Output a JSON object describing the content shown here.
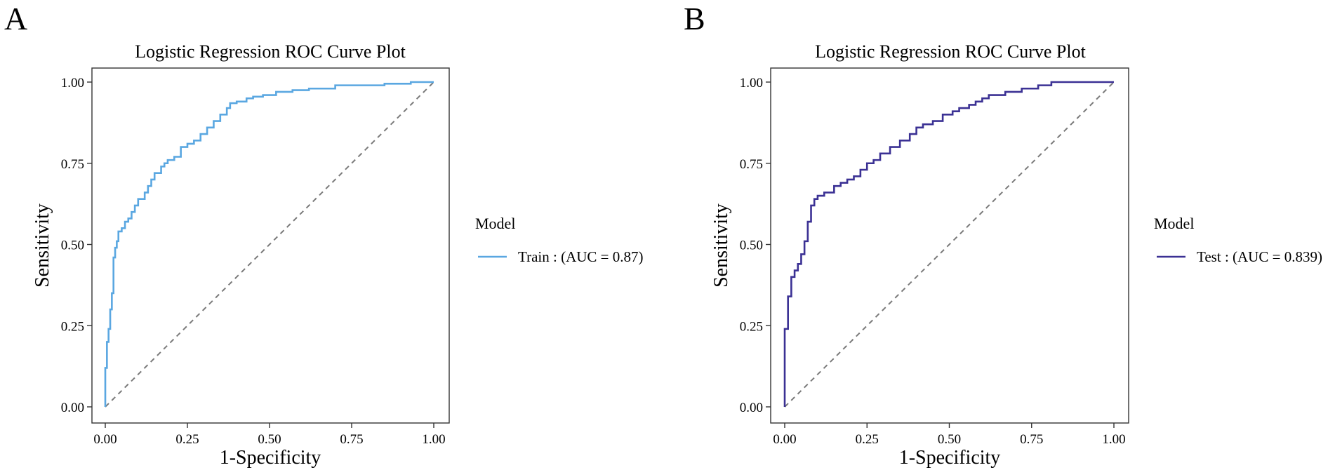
{
  "chart_data": [
    {
      "type": "line",
      "panel_label": "A",
      "title": "Logistic Regression ROC Curve Plot",
      "xlabel": "1-Specificity",
      "ylabel": "Sensitivity",
      "xlim": [
        0,
        1
      ],
      "ylim": [
        0,
        1
      ],
      "x_ticks": [
        "0.00",
        "0.25",
        "0.50",
        "0.75",
        "1.00"
      ],
      "y_ticks": [
        "0.00",
        "0.25",
        "0.50",
        "0.75",
        "1.00"
      ],
      "grid": false,
      "reference_line": "diagonal",
      "legend_title": "Model",
      "legend_position": "right",
      "series": [
        {
          "name": "Train : (AUC = 0.87)",
          "color": "#5aa7e1",
          "x": [
            0,
            0,
            0.005,
            0.005,
            0.01,
            0.01,
            0.015,
            0.015,
            0.02,
            0.02,
            0.025,
            0.025,
            0.03,
            0.03,
            0.035,
            0.035,
            0.04,
            0.04,
            0.05,
            0.05,
            0.06,
            0.06,
            0.07,
            0.07,
            0.08,
            0.08,
            0.09,
            0.09,
            0.1,
            0.1,
            0.12,
            0.12,
            0.13,
            0.13,
            0.14,
            0.14,
            0.15,
            0.15,
            0.17,
            0.17,
            0.18,
            0.18,
            0.19,
            0.19,
            0.21,
            0.21,
            0.23,
            0.23,
            0.25,
            0.25,
            0.27,
            0.27,
            0.29,
            0.29,
            0.31,
            0.31,
            0.33,
            0.33,
            0.35,
            0.35,
            0.37,
            0.37,
            0.38,
            0.38,
            0.4,
            0.4,
            0.43,
            0.43,
            0.45,
            0.45,
            0.48,
            0.48,
            0.52,
            0.52,
            0.57,
            0.57,
            0.62,
            0.62,
            0.7,
            0.7,
            0.85,
            0.85,
            0.93,
            0.93,
            1
          ],
          "y": [
            0,
            0.12,
            0.12,
            0.2,
            0.2,
            0.24,
            0.24,
            0.3,
            0.3,
            0.35,
            0.35,
            0.46,
            0.46,
            0.49,
            0.49,
            0.51,
            0.51,
            0.54,
            0.54,
            0.55,
            0.55,
            0.57,
            0.57,
            0.58,
            0.58,
            0.6,
            0.6,
            0.62,
            0.62,
            0.64,
            0.64,
            0.66,
            0.66,
            0.68,
            0.68,
            0.7,
            0.7,
            0.72,
            0.72,
            0.74,
            0.74,
            0.75,
            0.75,
            0.76,
            0.76,
            0.77,
            0.77,
            0.8,
            0.8,
            0.81,
            0.81,
            0.82,
            0.82,
            0.84,
            0.84,
            0.86,
            0.86,
            0.88,
            0.88,
            0.9,
            0.9,
            0.92,
            0.92,
            0.935,
            0.935,
            0.94,
            0.94,
            0.95,
            0.95,
            0.955,
            0.955,
            0.96,
            0.96,
            0.97,
            0.97,
            0.975,
            0.975,
            0.98,
            0.98,
            0.99,
            0.99,
            0.995,
            0.995,
            1,
            1
          ]
        }
      ]
    },
    {
      "type": "line",
      "panel_label": "B",
      "title": "Logistic Regression ROC Curve Plot",
      "xlabel": "1-Specificity",
      "ylabel": "Sensitivity",
      "xlim": [
        0,
        1
      ],
      "ylim": [
        0,
        1
      ],
      "x_ticks": [
        "0.00",
        "0.25",
        "0.50",
        "0.75",
        "1.00"
      ],
      "y_ticks": [
        "0.00",
        "0.25",
        "0.50",
        "0.75",
        "1.00"
      ],
      "grid": false,
      "reference_line": "diagonal",
      "legend_title": "Model",
      "legend_position": "right",
      "series": [
        {
          "name": "Test : (AUC = 0.839)",
          "color": "#3b3194",
          "x": [
            0,
            0,
            0.01,
            0.01,
            0.02,
            0.02,
            0.03,
            0.03,
            0.04,
            0.04,
            0.05,
            0.05,
            0.06,
            0.06,
            0.07,
            0.07,
            0.08,
            0.08,
            0.09,
            0.09,
            0.1,
            0.1,
            0.12,
            0.12,
            0.15,
            0.15,
            0.17,
            0.17,
            0.19,
            0.19,
            0.21,
            0.21,
            0.23,
            0.23,
            0.25,
            0.25,
            0.27,
            0.27,
            0.29,
            0.29,
            0.32,
            0.32,
            0.35,
            0.35,
            0.38,
            0.38,
            0.4,
            0.4,
            0.42,
            0.42,
            0.45,
            0.45,
            0.48,
            0.48,
            0.51,
            0.51,
            0.53,
            0.53,
            0.56,
            0.56,
            0.58,
            0.58,
            0.6,
            0.6,
            0.62,
            0.62,
            0.67,
            0.67,
            0.72,
            0.72,
            0.77,
            0.77,
            0.81,
            0.81,
            1
          ],
          "y": [
            0,
            0.24,
            0.24,
            0.34,
            0.34,
            0.4,
            0.4,
            0.42,
            0.42,
            0.44,
            0.44,
            0.47,
            0.47,
            0.51,
            0.51,
            0.57,
            0.57,
            0.62,
            0.62,
            0.64,
            0.64,
            0.65,
            0.65,
            0.66,
            0.66,
            0.68,
            0.68,
            0.69,
            0.69,
            0.7,
            0.7,
            0.71,
            0.71,
            0.73,
            0.73,
            0.75,
            0.75,
            0.76,
            0.76,
            0.78,
            0.78,
            0.8,
            0.8,
            0.82,
            0.82,
            0.84,
            0.84,
            0.86,
            0.86,
            0.87,
            0.87,
            0.88,
            0.88,
            0.9,
            0.9,
            0.91,
            0.91,
            0.92,
            0.92,
            0.93,
            0.93,
            0.94,
            0.94,
            0.95,
            0.95,
            0.96,
            0.96,
            0.97,
            0.97,
            0.98,
            0.98,
            0.99,
            0.99,
            1,
            1
          ]
        }
      ]
    }
  ]
}
